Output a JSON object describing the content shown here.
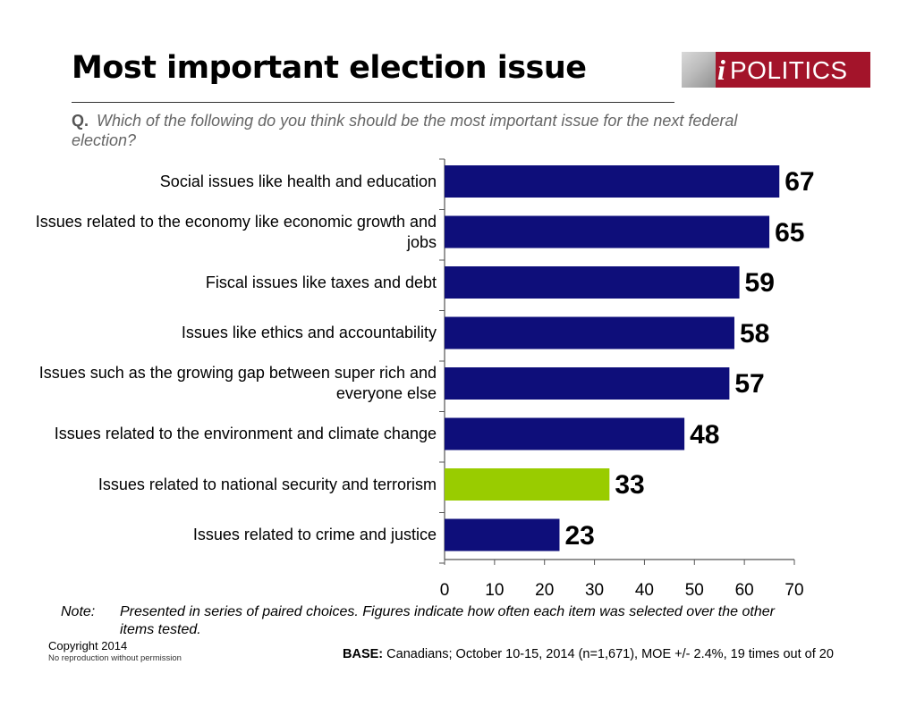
{
  "header": {
    "title": "Most important election issue",
    "logo_mark": "i",
    "logo_text": "POLITICS"
  },
  "question": {
    "prefix": "Q.",
    "text": "Which of the following do you think should be the most important issue for the next federal election?"
  },
  "colors": {
    "bar": "#0e0e7a",
    "highlight": "#99cc00"
  },
  "chart_data": {
    "type": "bar",
    "orientation": "horizontal",
    "categories": [
      "Social issues like health and education",
      "Issues related to the economy like economic growth and jobs",
      "Fiscal issues like taxes and debt",
      "Issues like ethics and accountability",
      "Issues such as the growing gap between super rich and everyone else",
      "Issues related to the environment and climate change",
      "Issues related to national security and terrorism",
      "Issues related to crime and justice"
    ],
    "values": [
      67,
      65,
      59,
      58,
      57,
      48,
      33,
      23
    ],
    "highlight_index": 6,
    "xlim": [
      0,
      70
    ],
    "xticks": [
      "0",
      "10",
      "20",
      "30",
      "40",
      "50",
      "60",
      "70"
    ],
    "grid": false
  },
  "footer": {
    "note_label": "Note:",
    "note_text": "Presented in series of paired choices. Figures indicate how often each item was selected over the other items tested.",
    "copyright": "Copyright 2014",
    "no_reproduction": "No reproduction without permission",
    "base_label": "BASE:",
    "base_text": "Canadians; October 10-15, 2014 (n=1,671), MOE +/- 2.4%, 19 times out of 20"
  }
}
